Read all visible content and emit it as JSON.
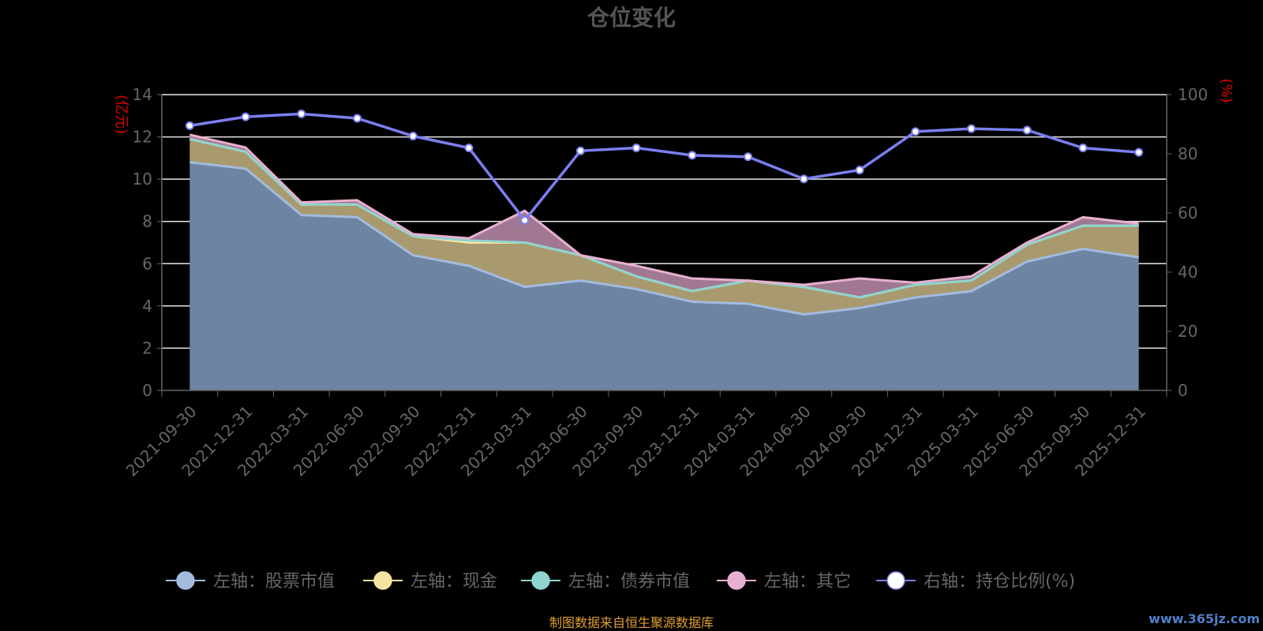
{
  "chart_data": {
    "type": "area",
    "title": "仓位变化",
    "left_unit": "(亿元)",
    "right_unit": "(%)",
    "categories": [
      "2021-09-30",
      "2021-12-31",
      "2022-03-31",
      "2022-06-30",
      "2022-09-30",
      "2022-12-31",
      "2023-03-31",
      "2023-06-30",
      "2023-09-30",
      "2023-12-31",
      "2024-03-31",
      "2024-06-30",
      "2024-09-30",
      "2024-12-31",
      "2025-03-31",
      "2025-06-30",
      "2025-09-30",
      "2025-12-31"
    ],
    "left_ylim": [
      0,
      14
    ],
    "left_yticks": [
      0,
      2,
      4,
      6,
      8,
      10,
      12,
      14
    ],
    "right_ylim": [
      0,
      100
    ],
    "right_yticks": [
      0,
      20,
      40,
      60,
      80,
      100
    ],
    "grid": true,
    "stacked": true,
    "series": [
      {
        "name": "左轴：股票市值",
        "axis": "left",
        "color": "#a3bbe0",
        "values": [
          10.8,
          10.5,
          8.3,
          8.2,
          6.4,
          5.9,
          4.9,
          5.2,
          4.8,
          4.2,
          4.1,
          3.6,
          3.9,
          4.4,
          4.7,
          6.1,
          6.7,
          6.3
        ]
      },
      {
        "name": "左轴：现金",
        "axis": "left",
        "color": "#f7e3a0",
        "values": [
          1.1,
          0.8,
          0.5,
          0.6,
          0.9,
          1.1,
          2.1,
          1.2,
          0.6,
          0.5,
          1.1,
          1.3,
          0.5,
          0.6,
          0.5,
          0.8,
          1.1,
          1.5
        ]
      },
      {
        "name": "左轴：债券市值",
        "axis": "left",
        "color": "#8fd4d0",
        "values": [
          0,
          0,
          0,
          0,
          0,
          0.1,
          0,
          0,
          0,
          0,
          0,
          0,
          0,
          0,
          0,
          0,
          0,
          0
        ]
      },
      {
        "name": "左轴：其它",
        "axis": "left",
        "color": "#e8b0d0",
        "values": [
          0.2,
          0.2,
          0.1,
          0.2,
          0.1,
          0.1,
          1.5,
          0.0,
          0.5,
          0.6,
          0,
          0.1,
          0.9,
          0.1,
          0.2,
          0.1,
          0.4,
          0.1
        ]
      },
      {
        "name": "右轴：持仓比例(%)",
        "axis": "right",
        "color": "#7b7ff0",
        "values": [
          89.5,
          92.5,
          93.5,
          92.0,
          86.0,
          82.0,
          57.5,
          81.0,
          82.0,
          79.5,
          79.0,
          71.5,
          74.5,
          87.5,
          88.5,
          88.0,
          82.0,
          80.5
        ]
      }
    ],
    "legend_position": "bottom"
  },
  "footer": {
    "source": "制图数据来自恒生聚源数据库",
    "watermark": "www.365jz.com"
  }
}
